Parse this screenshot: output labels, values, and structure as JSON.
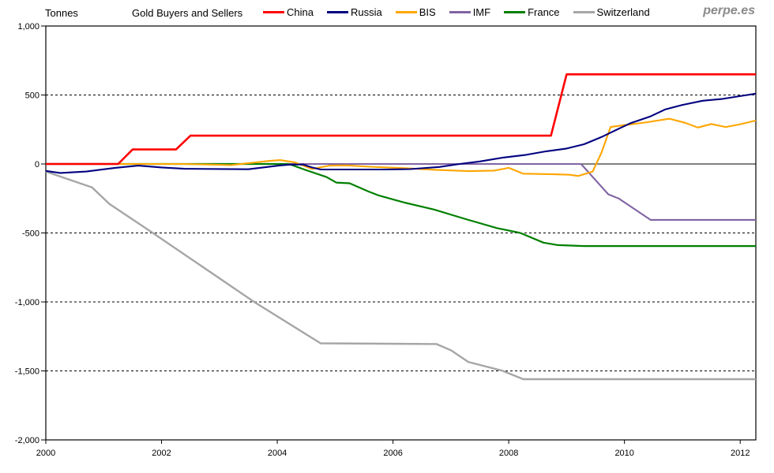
{
  "header": {
    "units_label": "Tonnes",
    "title": "Gold Buyers and Sellers",
    "watermark": "perpe.es"
  },
  "chart_data": {
    "type": "line",
    "title": "Gold Buyers and Sellers",
    "ylabel": "Tonnes",
    "xlabel": "",
    "grid": "horizontal dashed lines every 500, solid line at 0, full black plot border",
    "legend_position": "top",
    "x_axis": {
      "min": 2000,
      "max": 2012.27,
      "ticks": [
        2000,
        2002,
        2004,
        2006,
        2008,
        2010,
        2012
      ],
      "tick_labels": [
        "2000",
        "2002",
        "2004",
        "2006",
        "2008",
        "2010",
        "2012"
      ]
    },
    "y_axis": {
      "min": -2000,
      "max": 1000,
      "ticks": [
        1000,
        500,
        0,
        -500,
        -1000,
        -1500,
        -2000
      ],
      "tick_labels": [
        "1,000",
        "500",
        "0",
        "-500",
        "-1,000",
        "-1,500",
        "-2,000"
      ]
    },
    "draw_order": [
      "Switzerland",
      "IMF",
      "France",
      "BIS",
      "Russia",
      "China"
    ],
    "series": [
      {
        "name": "China",
        "color": "#FF0000",
        "width": 2.6,
        "points": [
          [
            2000,
            0
          ],
          [
            2001.25,
            0
          ],
          [
            2001.5,
            105
          ],
          [
            2002.25,
            105
          ],
          [
            2002.5,
            205
          ],
          [
            2008.73,
            205
          ],
          [
            2009.0,
            650
          ],
          [
            2012.27,
            650
          ]
        ]
      },
      {
        "name": "Russia",
        "color": "#000080",
        "width": 2.1,
        "points": [
          [
            2000,
            -50
          ],
          [
            2000.25,
            -65
          ],
          [
            2000.7,
            -55
          ],
          [
            2001.2,
            -28
          ],
          [
            2001.6,
            -12
          ],
          [
            2002.0,
            -25
          ],
          [
            2002.4,
            -35
          ],
          [
            2003.5,
            -38
          ],
          [
            2004.05,
            -10
          ],
          [
            2004.25,
            -4
          ],
          [
            2004.45,
            -4
          ],
          [
            2004.6,
            -25
          ],
          [
            2004.75,
            -40
          ],
          [
            2005.8,
            -40
          ],
          [
            2006.3,
            -37
          ],
          [
            2006.8,
            -22
          ],
          [
            2007.15,
            0
          ],
          [
            2007.5,
            18
          ],
          [
            2007.9,
            46
          ],
          [
            2008.3,
            66
          ],
          [
            2008.65,
            92
          ],
          [
            2009.0,
            112
          ],
          [
            2009.3,
            143
          ],
          [
            2009.6,
            195
          ],
          [
            2009.85,
            245
          ],
          [
            2010.1,
            295
          ],
          [
            2010.45,
            345
          ],
          [
            2010.7,
            395
          ],
          [
            2011.0,
            428
          ],
          [
            2011.35,
            458
          ],
          [
            2011.7,
            472
          ],
          [
            2012.0,
            492
          ],
          [
            2012.27,
            510
          ]
        ]
      },
      {
        "name": "BIS",
        "color": "#FFA500",
        "width": 2.1,
        "points": [
          [
            2000,
            0
          ],
          [
            2002.4,
            0
          ],
          [
            2003.2,
            -8
          ],
          [
            2003.85,
            22
          ],
          [
            2004.05,
            28
          ],
          [
            2004.3,
            12
          ],
          [
            2004.6,
            -36
          ],
          [
            2004.9,
            -12
          ],
          [
            2005.2,
            -10
          ],
          [
            2005.6,
            -20
          ],
          [
            2006.2,
            -30
          ],
          [
            2006.7,
            -42
          ],
          [
            2007.3,
            -52
          ],
          [
            2007.75,
            -48
          ],
          [
            2008.0,
            -28
          ],
          [
            2008.25,
            -70
          ],
          [
            2008.8,
            -75
          ],
          [
            2009.05,
            -78
          ],
          [
            2009.2,
            -87
          ],
          [
            2009.45,
            -55
          ],
          [
            2009.6,
            80
          ],
          [
            2009.76,
            268
          ],
          [
            2010.0,
            282
          ],
          [
            2010.35,
            300
          ],
          [
            2010.78,
            328
          ],
          [
            2011.05,
            298
          ],
          [
            2011.27,
            264
          ],
          [
            2011.5,
            290
          ],
          [
            2011.75,
            268
          ],
          [
            2012.0,
            288
          ],
          [
            2012.27,
            315
          ]
        ]
      },
      {
        "name": "IMF",
        "color": "#8064A2",
        "width": 2.1,
        "points": [
          [
            2000,
            0
          ],
          [
            2009.25,
            0
          ],
          [
            2009.72,
            -220
          ],
          [
            2009.9,
            -250
          ],
          [
            2010.45,
            -405
          ],
          [
            2012.27,
            -405
          ]
        ]
      },
      {
        "name": "France",
        "color": "#008000",
        "width": 2.2,
        "points": [
          [
            2000,
            0
          ],
          [
            2004.2,
            0
          ],
          [
            2004.5,
            -45
          ],
          [
            2004.85,
            -95
          ],
          [
            2005.02,
            -135
          ],
          [
            2005.25,
            -140
          ],
          [
            2005.58,
            -200
          ],
          [
            2005.76,
            -229
          ],
          [
            2006.2,
            -280
          ],
          [
            2006.71,
            -330
          ],
          [
            2007.26,
            -400
          ],
          [
            2007.8,
            -465
          ],
          [
            2008.2,
            -500
          ],
          [
            2008.6,
            -570
          ],
          [
            2008.85,
            -588
          ],
          [
            2009.3,
            -595
          ],
          [
            2012.27,
            -595
          ]
        ]
      },
      {
        "name": "Switzerland",
        "color": "#A6A6A6",
        "width": 2.4,
        "points": [
          [
            2000,
            -55
          ],
          [
            2000.8,
            -170
          ],
          [
            2001.1,
            -290
          ],
          [
            2001.85,
            -500
          ],
          [
            2003.6,
            -1000
          ],
          [
            2004.75,
            -1300
          ],
          [
            2006.75,
            -1305
          ],
          [
            2007.0,
            -1350
          ],
          [
            2007.3,
            -1435
          ],
          [
            2007.9,
            -1500
          ],
          [
            2008.25,
            -1560
          ],
          [
            2012.27,
            -1560
          ]
        ]
      }
    ]
  }
}
